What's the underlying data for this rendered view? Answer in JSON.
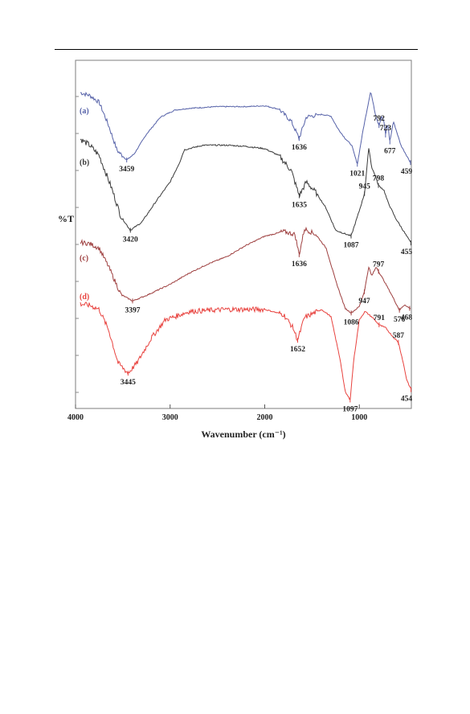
{
  "chart_data": {
    "type": "line",
    "xlabel": "Wavenumber (cm⁻¹)",
    "ylabel": "%T",
    "xlim": [
      4000,
      450
    ],
    "x_ticks": [
      4000,
      3000,
      2000,
      1000
    ],
    "grid": false,
    "legend": "none",
    "series": [
      {
        "name": "(a)",
        "color": "#5561a8",
        "points": [
          [
            4000,
            0.95
          ],
          [
            3850,
            0.9
          ],
          [
            3750,
            0.82
          ],
          [
            3650,
            0.55
          ],
          [
            3560,
            0.26
          ],
          [
            3459,
            0.15
          ],
          [
            3380,
            0.22
          ],
          [
            3250,
            0.45
          ],
          [
            3100,
            0.65
          ],
          [
            2950,
            0.73
          ],
          [
            2800,
            0.75
          ],
          [
            2500,
            0.77
          ],
          [
            2200,
            0.77
          ],
          [
            2000,
            0.78
          ],
          [
            1850,
            0.74
          ],
          [
            1720,
            0.6
          ],
          [
            1636,
            0.4
          ],
          [
            1560,
            0.65
          ],
          [
            1400,
            0.68
          ],
          [
            1300,
            0.66
          ],
          [
            1230,
            0.52
          ],
          [
            1150,
            0.4
          ],
          [
            1080,
            0.32
          ],
          [
            1021,
            0.1
          ],
          [
            960,
            0.5
          ],
          [
            880,
            0.95
          ],
          [
            830,
            0.68
          ],
          [
            792,
            0.55
          ],
          [
            765,
            0.66
          ],
          [
            740,
            0.6
          ],
          [
            723,
            0.44
          ],
          [
            700,
            0.58
          ],
          [
            677,
            0.36
          ],
          [
            640,
            0.6
          ],
          [
            560,
            0.32
          ],
          [
            459,
            0.12
          ]
        ],
        "annotations": [
          {
            "label": "3459",
            "x": 3459
          },
          {
            "label": "1636",
            "x": 1636
          },
          {
            "label": "1021",
            "x": 1021
          },
          {
            "label": "792",
            "x": 792
          },
          {
            "label": "723",
            "x": 723
          },
          {
            "label": "677",
            "x": 677
          },
          {
            "label": "459",
            "x": 459
          }
        ]
      },
      {
        "name": "(b)",
        "color": "#3a3a3a",
        "points": [
          [
            4000,
            0.95
          ],
          [
            3850,
            0.87
          ],
          [
            3750,
            0.78
          ],
          [
            3620,
            0.5
          ],
          [
            3520,
            0.25
          ],
          [
            3420,
            0.13
          ],
          [
            3300,
            0.2
          ],
          [
            3150,
            0.38
          ],
          [
            3000,
            0.55
          ],
          [
            2900,
            0.72
          ],
          [
            2850,
            0.83
          ],
          [
            2650,
            0.87
          ],
          [
            2400,
            0.87
          ],
          [
            2200,
            0.86
          ],
          [
            2000,
            0.84
          ],
          [
            1850,
            0.78
          ],
          [
            1720,
            0.65
          ],
          [
            1635,
            0.43
          ],
          [
            1560,
            0.55
          ],
          [
            1450,
            0.45
          ],
          [
            1350,
            0.32
          ],
          [
            1250,
            0.13
          ],
          [
            1087,
            0.08
          ],
          [
            1000,
            0.3
          ],
          [
            945,
            0.45
          ],
          [
            900,
            0.85
          ],
          [
            870,
            0.68
          ],
          [
            830,
            0.6
          ],
          [
            798,
            0.52
          ],
          [
            740,
            0.48
          ],
          [
            700,
            0.38
          ],
          [
            620,
            0.24
          ],
          [
            530,
            0.12
          ],
          [
            455,
            0.02
          ]
        ],
        "annotations": [
          {
            "label": "3420",
            "x": 3420
          },
          {
            "label": "1635",
            "x": 1635
          },
          {
            "label": "1087",
            "x": 1087
          },
          {
            "label": "945",
            "x": 945
          },
          {
            "label": "798",
            "x": 798
          },
          {
            "label": "455",
            "x": 455
          }
        ]
      },
      {
        "name": "(c)",
        "color": "#9e3f3f",
        "points": [
          [
            4000,
            0.82
          ],
          [
            3850,
            0.8
          ],
          [
            3750,
            0.75
          ],
          [
            3650,
            0.55
          ],
          [
            3520,
            0.25
          ],
          [
            3397,
            0.18
          ],
          [
            3250,
            0.24
          ],
          [
            3000,
            0.36
          ],
          [
            2800,
            0.48
          ],
          [
            2600,
            0.58
          ],
          [
            2400,
            0.66
          ],
          [
            2200,
            0.78
          ],
          [
            2000,
            0.88
          ],
          [
            1800,
            0.93
          ],
          [
            1680,
            0.9
          ],
          [
            1636,
            0.68
          ],
          [
            1580,
            0.96
          ],
          [
            1460,
            0.9
          ],
          [
            1350,
            0.75
          ],
          [
            1250,
            0.4
          ],
          [
            1150,
            0.1
          ],
          [
            1086,
            0.05
          ],
          [
            1000,
            0.12
          ],
          [
            947,
            0.28
          ],
          [
            900,
            0.55
          ],
          [
            870,
            0.45
          ],
          [
            820,
            0.55
          ],
          [
            797,
            0.5
          ],
          [
            740,
            0.4
          ],
          [
            660,
            0.25
          ],
          [
            576,
            0.08
          ],
          [
            520,
            0.14
          ],
          [
            468,
            0.1
          ]
        ],
        "annotations": [
          {
            "label": "3397",
            "x": 3397
          },
          {
            "label": "1636",
            "x": 1636
          },
          {
            "label": "1086",
            "x": 1086
          },
          {
            "label": "947",
            "x": 947
          },
          {
            "label": "797",
            "x": 797
          },
          {
            "label": "576",
            "x": 576
          },
          {
            "label": "468",
            "x": 468
          }
        ]
      },
      {
        "name": "(d)",
        "color": "#e8423e",
        "points": [
          [
            4000,
            0.96
          ],
          [
            3850,
            0.94
          ],
          [
            3750,
            0.9
          ],
          [
            3650,
            0.7
          ],
          [
            3550,
            0.38
          ],
          [
            3445,
            0.28
          ],
          [
            3350,
            0.38
          ],
          [
            3200,
            0.62
          ],
          [
            3050,
            0.8
          ],
          [
            2950,
            0.83
          ],
          [
            2800,
            0.88
          ],
          [
            2400,
            0.9
          ],
          [
            2000,
            0.9
          ],
          [
            1800,
            0.85
          ],
          [
            1700,
            0.72
          ],
          [
            1652,
            0.6
          ],
          [
            1580,
            0.82
          ],
          [
            1400,
            0.9
          ],
          [
            1300,
            0.83
          ],
          [
            1200,
            0.4
          ],
          [
            1150,
            0.1
          ],
          [
            1097,
            0.02
          ],
          [
            1060,
            0.4
          ],
          [
            1000,
            0.8
          ],
          [
            940,
            0.88
          ],
          [
            860,
            0.82
          ],
          [
            791,
            0.75
          ],
          [
            720,
            0.72
          ],
          [
            650,
            0.64
          ],
          [
            587,
            0.58
          ],
          [
            540,
            0.4
          ],
          [
            500,
            0.22
          ],
          [
            454,
            0.12
          ]
        ],
        "annotations": [
          {
            "label": "3445",
            "x": 3445
          },
          {
            "label": "1652",
            "x": 1652
          },
          {
            "label": "1097",
            "x": 1097
          },
          {
            "label": "791",
            "x": 791
          },
          {
            "label": "587",
            "x": 587
          },
          {
            "label": "454",
            "x": 454
          }
        ]
      }
    ]
  }
}
